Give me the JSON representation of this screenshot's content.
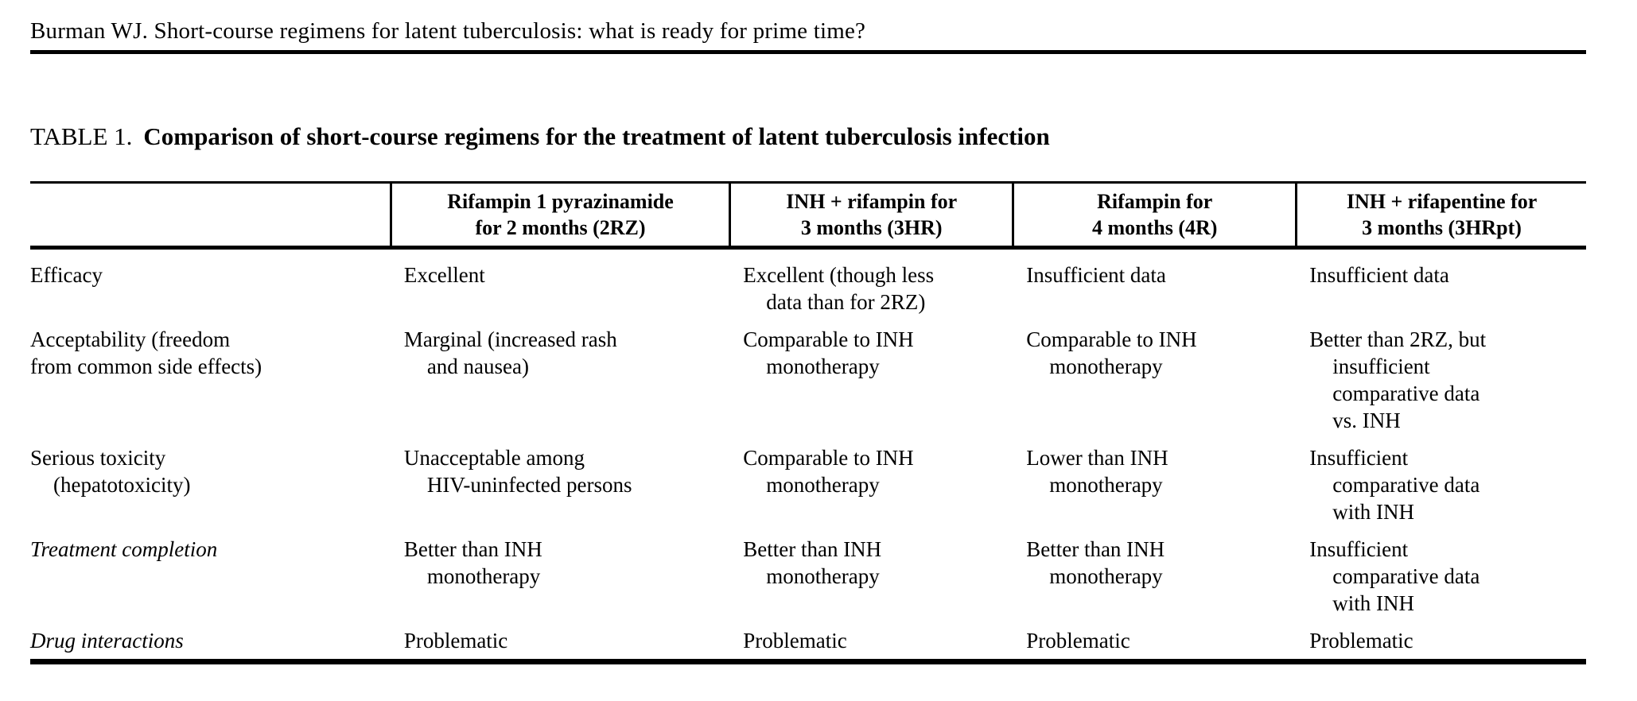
{
  "page": {
    "running_head": "Burman WJ. Short-course regimens for latent tuberculosis: what is ready for prime time?",
    "caption_label": "TABLE 1.",
    "caption_title": "Comparison of short-course regimens for the treatment of latent tuberculosis infection"
  },
  "table": {
    "columns": [
      {
        "label": ""
      },
      {
        "label": "Rifampin 1 pyrazinamide\nfor 2 months (2RZ)"
      },
      {
        "label": "INH + rifampin for\n3 months (3HR)"
      },
      {
        "label": "Rifampin for\n4 months (4R)"
      },
      {
        "label": "INH + rifapentine for\n3 months (3HRpt)"
      }
    ],
    "rows": [
      {
        "label": "Efficacy",
        "cells": [
          "Excellent",
          "Excellent (though less\ndata than for 2RZ)",
          "Insufficient data",
          "Insufficient data"
        ]
      },
      {
        "label": "Acceptability (freedom\nfrom common side effects)",
        "cells": [
          "Marginal (increased rash\nand nausea)",
          "Comparable to INH\nmonotherapy",
          "Comparable to INH\nmonotherapy",
          "Better than 2RZ, but\ninsufficient\ncomparative data\nvs. INH"
        ]
      },
      {
        "label": "Serious toxicity\n(hepatotoxicity)",
        "cells": [
          "Unacceptable among\nHIV-uninfected persons",
          "Comparable to INH\nmonotherapy",
          "Lower than INH\nmonotherapy",
          "Insufficient\ncomparative data\nwith INH"
        ]
      },
      {
        "label": "Treatment completion",
        "cells": [
          "Better than INH\nmonotherapy",
          "Better than INH\nmonotherapy",
          "Better than INH\nmonotherapy",
          "Insufficient\ncomparative data\nwith INH"
        ]
      },
      {
        "label": "Drug interactions",
        "cells": [
          "Problematic",
          "Problematic",
          "Problematic",
          "Problematic"
        ]
      }
    ]
  }
}
